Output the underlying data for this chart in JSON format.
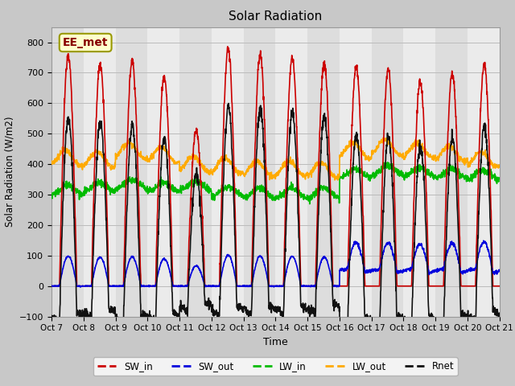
{
  "title": "Solar Radiation",
  "xlabel": "Time",
  "ylabel": "Solar Radiation (W/m2)",
  "ylim": [
    -100,
    850
  ],
  "yticks": [
    -100,
    0,
    100,
    200,
    300,
    400,
    500,
    600,
    700,
    800
  ],
  "n_days": 14,
  "colors": {
    "SW_in": "#cc0000",
    "SW_out": "#0000dd",
    "LW_in": "#00bb00",
    "LW_out": "#ffaa00",
    "Rnet": "#111111"
  },
  "lw": 1.2,
  "label_box": {
    "text": "EE_met",
    "facecolor": "#ffffcc",
    "edgecolor": "#999900",
    "fontsize": 10
  },
  "fig_bg": "#c8c8c8",
  "ax_bg": "#e8e8e8",
  "band_light": "#e8e8e8",
  "band_dark": "#d0d0d0",
  "grid_color": "#bbbbbb",
  "xtick_labels": [
    "Oct 7",
    "Oct 8",
    "Oct 9",
    "Oct 10",
    "Oct 11",
    "Oct 12",
    "Oct 13",
    "Oct 14",
    "Oct 15",
    "Oct 16",
    "Oct 17",
    "Oct 18",
    "Oct 19",
    "Oct 20",
    "Oct 21"
  ],
  "samples_per_day": 144
}
